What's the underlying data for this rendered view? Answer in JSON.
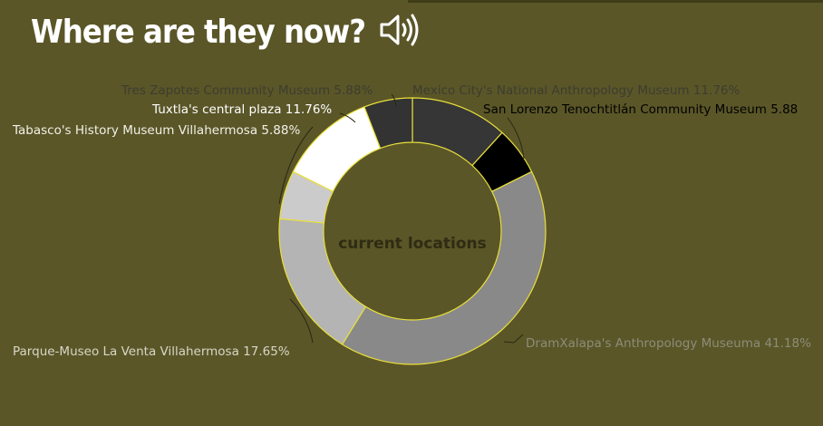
{
  "header": {
    "title": "Where are they now?",
    "sound_icon": "speaker-sound-icon"
  },
  "chart_data": {
    "type": "pie",
    "donut": true,
    "center_label": "current locations",
    "slices": [
      {
        "label": "Mexico City's National Anthropology Museum",
        "value": 11.76,
        "display": "Mexico City's National Anthropology Museum 11.76%",
        "color": "#363636",
        "label_color": "#3d3d2e"
      },
      {
        "label": "San Lorenzo Tenochtitlán Community Museum",
        "value": 5.88,
        "display": "San Lorenzo Tenochtitlán Community Museum 5.88",
        "color": "#000000",
        "label_color": "#000000"
      },
      {
        "label": "DramXalapa's Anthropology Museuma",
        "value": 41.18,
        "display": "DramXalapa's Anthropology Museuma 41.18%",
        "color": "#898989",
        "label_color": "#8e8c78"
      },
      {
        "label": "Parque-Museo La Venta Villahermosa",
        "value": 17.65,
        "display": "Parque-Museo La Venta Villahermosa 17.65%",
        "color": "#b4b4b4",
        "label_color": "#d8d6c6"
      },
      {
        "label": "Tabasco's History Museum Villahermosa",
        "value": 5.88,
        "display": "Tabasco's History Museum Villahermosa 5.88%",
        "color": "#cbcbcb",
        "label_color": "#f2f0e6"
      },
      {
        "label": "Tuxtla's central plaza",
        "value": 11.76,
        "display": "Tuxtla's central plaza 11.76%",
        "color": "#ffffff",
        "label_color": "#ffffff"
      },
      {
        "label": "Tres Zapotes Community Museum",
        "value": 5.88,
        "display": "Tres Zapotes Community Museum 5.88%",
        "color": "#333333",
        "label_color": "#3d3d2e"
      }
    ],
    "colors": {
      "background": "#5a5628",
      "segment_border": "#e8df3a"
    }
  }
}
